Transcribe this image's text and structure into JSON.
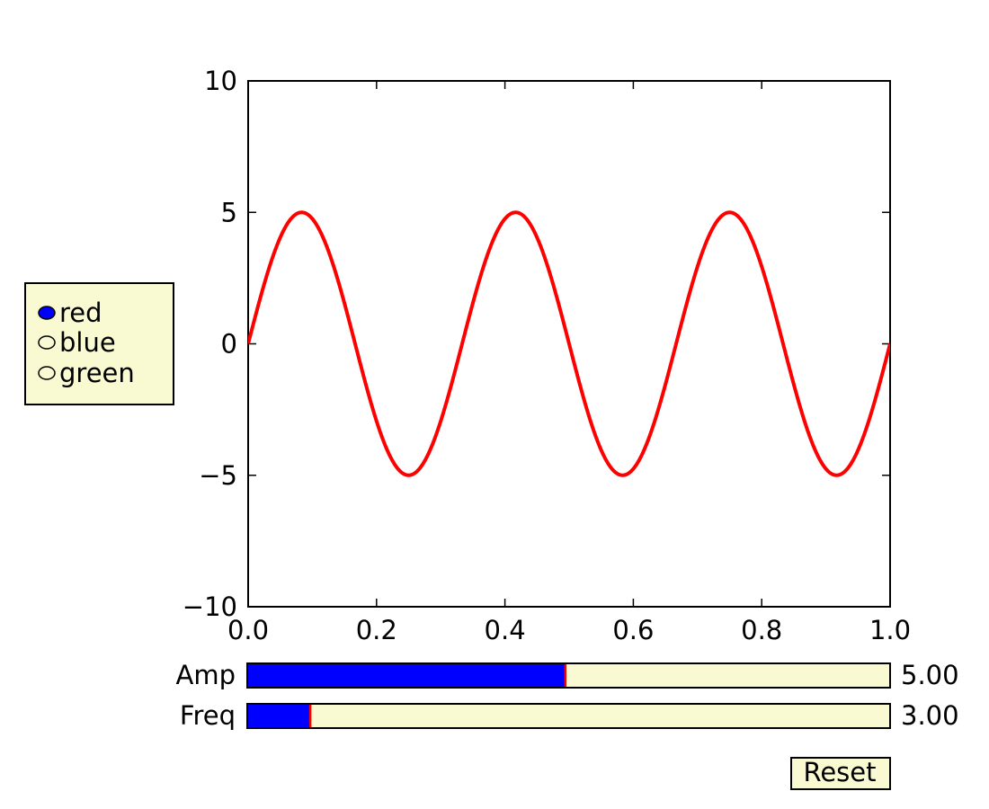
{
  "chart_data": {
    "type": "line",
    "title": "",
    "xlabel": "",
    "ylabel": "",
    "xlim": [
      0.0,
      1.0
    ],
    "ylim": [
      -10,
      10
    ],
    "x_ticks": [
      "0.0",
      "0.2",
      "0.4",
      "0.6",
      "0.8",
      "1.0"
    ],
    "x_tick_values": [
      0.0,
      0.2,
      0.4,
      0.6,
      0.8,
      1.0
    ],
    "y_ticks": [
      "10",
      "5",
      "0",
      "−5",
      "−10"
    ],
    "y_tick_values": [
      10,
      5,
      0,
      -5,
      -10
    ],
    "grid": false,
    "series": [
      {
        "color": "#ff0000",
        "function": "amp*sin(2*pi*freq*x)",
        "amp": 5.0,
        "freq": 3.0
      }
    ]
  },
  "radio": {
    "options": [
      {
        "label": "red",
        "selected": true
      },
      {
        "label": "blue",
        "selected": false
      },
      {
        "label": "green",
        "selected": false
      }
    ],
    "selected_color": "#0000ff"
  },
  "sliders": [
    {
      "label": "Amp",
      "value": 5.0,
      "display": "5.00",
      "min": 0.1,
      "max": 10.0
    },
    {
      "label": "Freq",
      "value": 3.0,
      "display": "3.00",
      "min": 0.1,
      "max": 30.0
    }
  ],
  "reset_button": {
    "label": "Reset"
  },
  "colors": {
    "widget_bg": "#fafad2",
    "slider_fill": "#0000ff",
    "slider_marker": "#ff0000",
    "line": "#ff0000"
  }
}
